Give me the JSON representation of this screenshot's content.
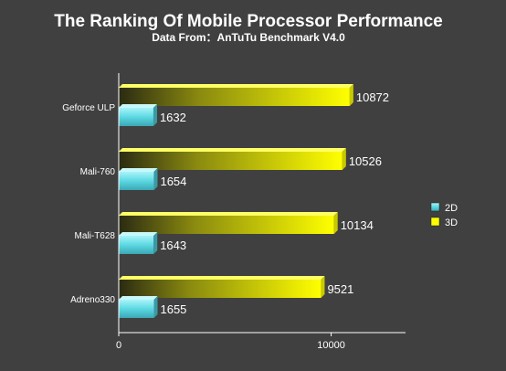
{
  "chart_data": {
    "type": "bar",
    "orientation": "horizontal",
    "title": "The Ranking Of Mobile Processor Performance",
    "subtitle": "Data From：AnTuTu Benchmark V4.0",
    "categories": [
      "Geforce ULP",
      "Mali-760",
      "Mali-T628",
      "Adreno330"
    ],
    "series": [
      {
        "name": "2D",
        "values": [
          1632,
          1654,
          1643,
          1655
        ]
      },
      {
        "name": "3D",
        "values": [
          10872,
          10526,
          10134,
          9521
        ]
      }
    ],
    "xlim": [
      0,
      13500
    ],
    "xticks": [
      0,
      10000
    ],
    "legend_position": "right",
    "grid": false,
    "colors": {
      "2D": "#66e0e8",
      "3D": "#ffff00",
      "background": "#404040",
      "axis": "#ffffff"
    }
  }
}
